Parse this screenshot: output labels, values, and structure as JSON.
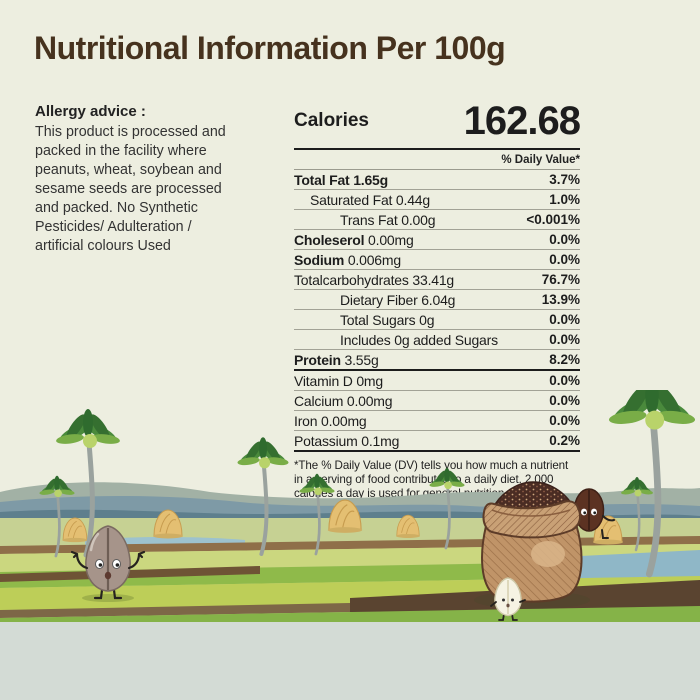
{
  "title": "Nutritional Information Per 100g",
  "allergy": {
    "heading": "Allergy advice :",
    "body": "This product is processed and packed in the facility where peanuts, wheat, soybean and sesame seeds are processed and packed. No Synthetic Pesticides/ Adulteration / artificial colours Used"
  },
  "nutrition": {
    "calories_label": "Calories",
    "calories_value": "162.68",
    "daily_value_header": "% Daily Value*",
    "main_rows": [
      {
        "name": "Total Fat",
        "amount": "1.65g",
        "name_bold": true,
        "amount_bold": true,
        "indent": 0,
        "percent": "3.7%"
      },
      {
        "name": "Saturated Fat",
        "amount": "0.44g",
        "name_bold": false,
        "amount_bold": false,
        "indent": 1,
        "percent": "1.0%"
      },
      {
        "name": "Trans Fat",
        "amount": "0.00g",
        "name_bold": false,
        "amount_bold": false,
        "indent": 2,
        "percent": "<0.001%"
      },
      {
        "name": "Choleserol",
        "amount": "0.00mg",
        "name_bold": true,
        "amount_bold": false,
        "indent": 0,
        "percent": "0.0%"
      },
      {
        "name": "Sodium",
        "amount": "0.006mg",
        "name_bold": true,
        "amount_bold": false,
        "indent": 0,
        "percent": "0.0%"
      },
      {
        "name": "Totalcarbohydrates",
        "amount": "33.41g",
        "name_bold": false,
        "amount_bold": false,
        "indent": 0,
        "percent": "76.7%"
      },
      {
        "name": "Dietary Fiber",
        "amount": "6.04g",
        "name_bold": false,
        "amount_bold": false,
        "indent": 2,
        "percent": "13.9%"
      },
      {
        "name": "Total Sugars",
        "amount": "0g",
        "name_bold": false,
        "amount_bold": false,
        "indent": 2,
        "percent": "0.0%"
      },
      {
        "name": "Includes 0g added Sugars",
        "amount": "",
        "name_bold": false,
        "amount_bold": false,
        "indent": 2,
        "percent": "0.0%"
      },
      {
        "name": "Protein",
        "amount": "3.55g",
        "name_bold": true,
        "amount_bold": false,
        "indent": 0,
        "percent": "8.2%"
      }
    ],
    "vitamin_rows": [
      {
        "name": "Vitamin D",
        "amount": "0mg",
        "name_bold": false,
        "amount_bold": false,
        "indent": 0,
        "percent": "0.0%"
      },
      {
        "name": "Calcium",
        "amount": "0.00mg",
        "name_bold": false,
        "amount_bold": false,
        "indent": 0,
        "percent": "0.0%"
      },
      {
        "name": "Iron",
        "amount": "0.00mg",
        "name_bold": false,
        "amount_bold": false,
        "indent": 0,
        "percent": "0.0%"
      },
      {
        "name": "Potassium",
        "amount": "0.1mg",
        "name_bold": false,
        "amount_bold": false,
        "indent": 0,
        "percent": "0.2%"
      }
    ],
    "footnote": "*The % Daily Value (DV) tells you how much a nutrient in a serving of food contributes to a daily diet. 2,000 calories a day is used for general nutrition advise"
  },
  "scene": {
    "elements": [
      "palm-trees",
      "haystacks",
      "millet-seed-character",
      "grain-sack",
      "bean-character",
      "rice-grain-character",
      "rivers",
      "paddy-fields",
      "hills"
    ]
  },
  "colors": {
    "background": "#edeee0",
    "title_brown": "#46321e",
    "text_black": "#1d1d1d",
    "hill_blue": "#7e9aa6",
    "field_green": "#8fba4a",
    "field_pale": "#c6d193",
    "path_brown": "#8f6f49",
    "river_blue": "#9dc2ce",
    "bottom_strip": "#d3dbd5",
    "sack_tan": "#c09468",
    "grain_maroon": "#4a2c23",
    "seed_body": "#a6948a",
    "bean_body": "#5c3222",
    "rice_body": "#f6f3e3",
    "hay_tan": "#e4bf72"
  }
}
